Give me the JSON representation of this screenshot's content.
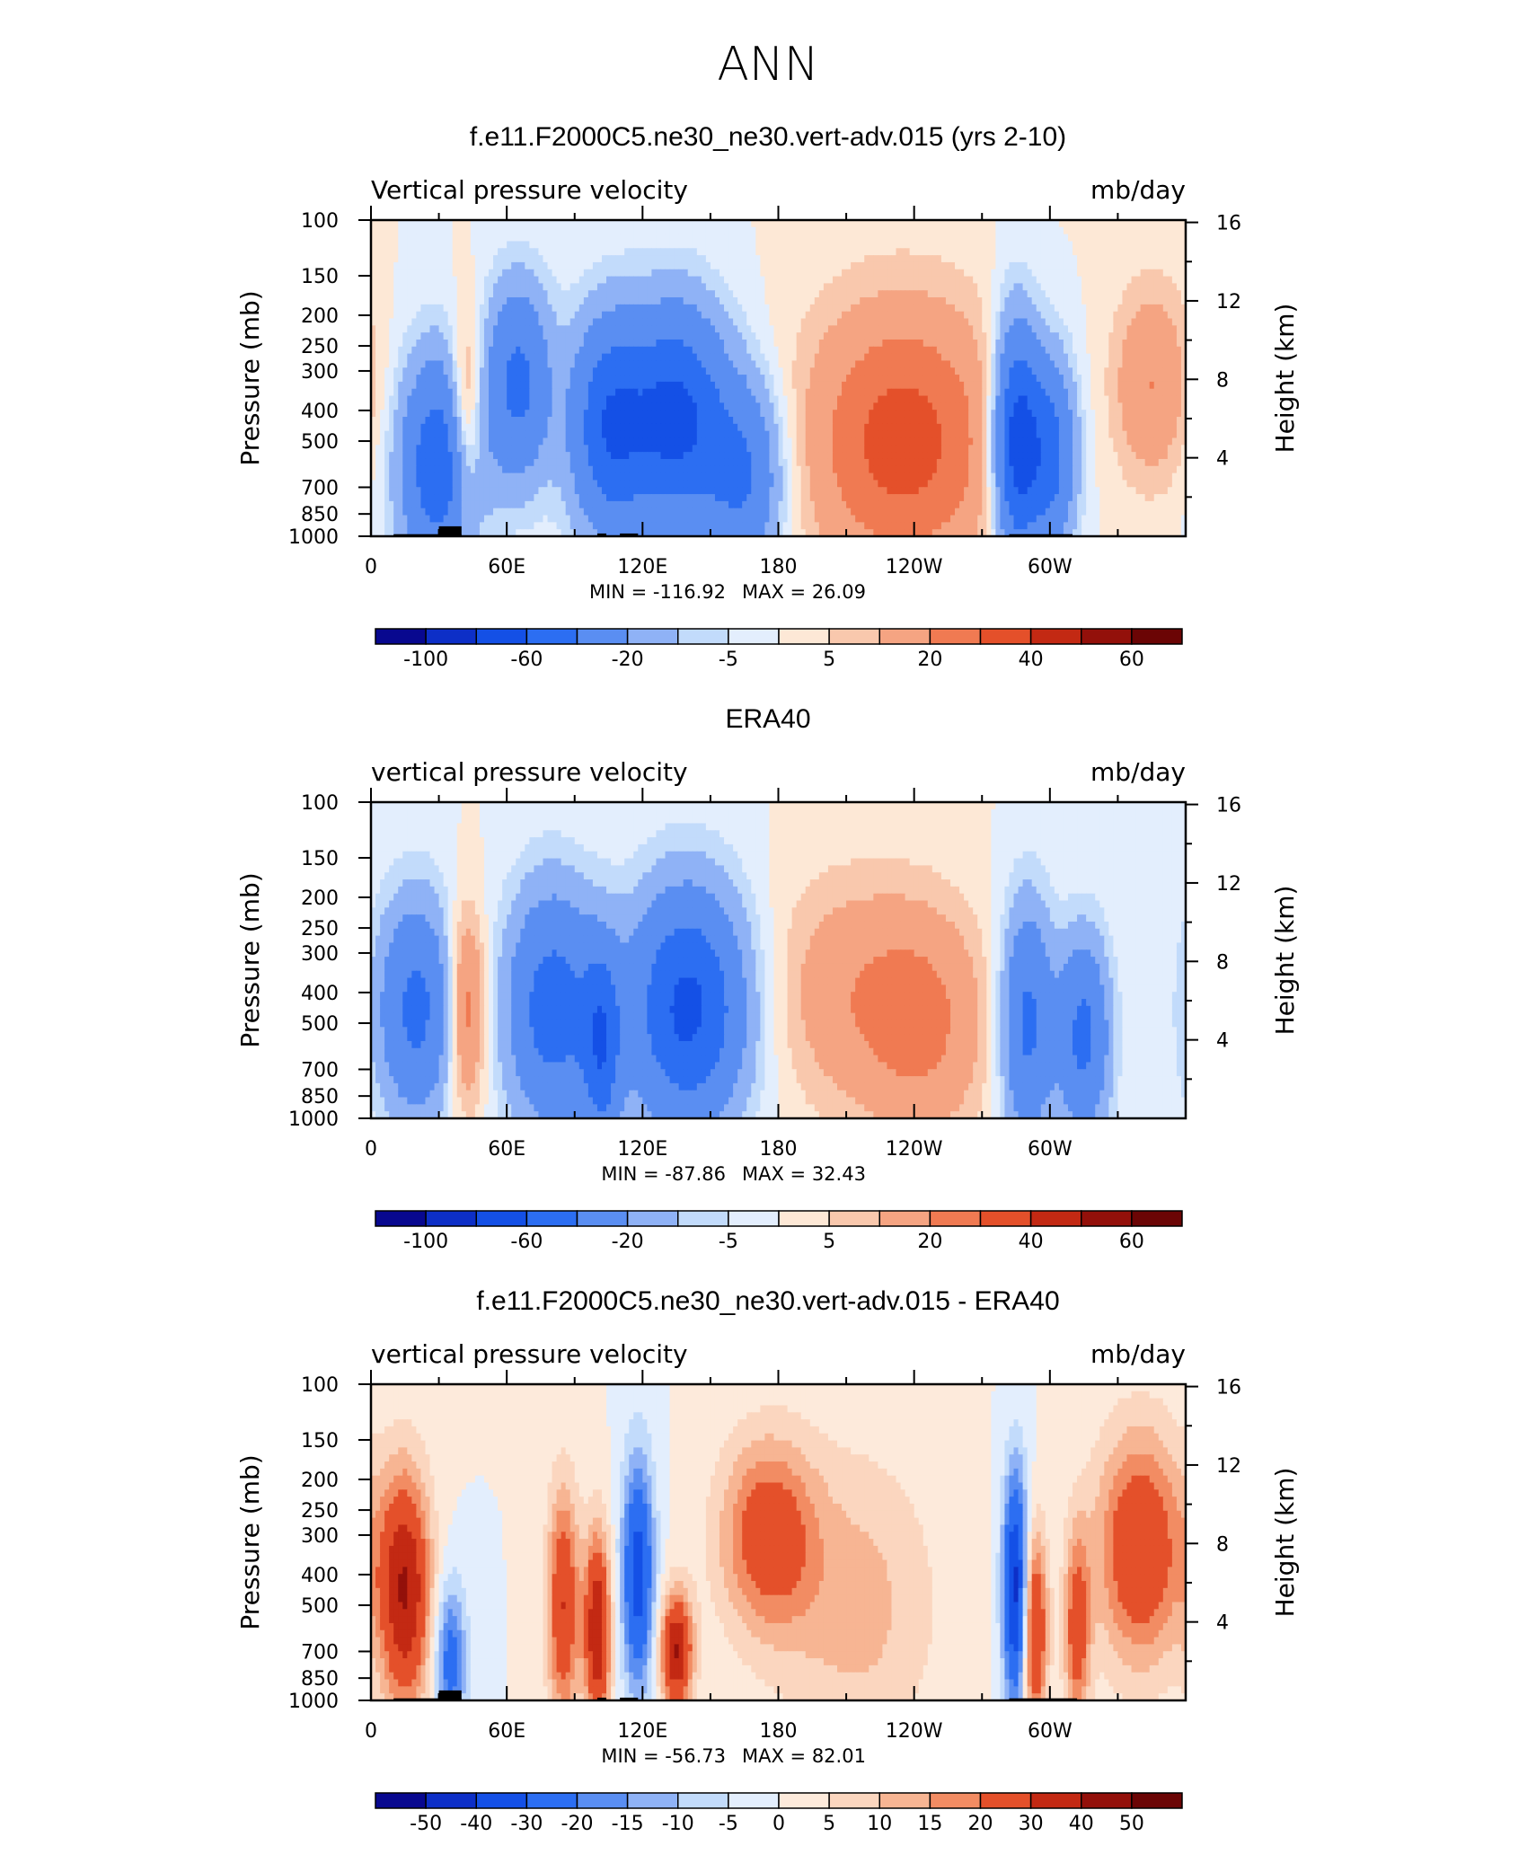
{
  "title": "ANN",
  "chart_data": [
    {
      "type": "heatmap",
      "title": "f.e11.F2000C5.ne30_ne30.vert-adv.015 (yrs 2-10)",
      "left_label": "Vertical pressure velocity",
      "units": "mb/day",
      "ylabel_left": "Pressure (mb)",
      "ylabel_right": "Height (km)",
      "x_ticks": [
        "0",
        "60E",
        "120E",
        "180",
        "120W",
        "60W"
      ],
      "pressure_ticks": [
        "100",
        "150",
        "200",
        "250",
        "300",
        "400",
        "500",
        "700",
        "850",
        "1000"
      ],
      "height_ticks": [
        "16",
        "12",
        "8",
        "4"
      ],
      "min_label": "MIN = -116.92",
      "max_label": "MAX = 26.09",
      "colorbar_labels": [
        "-100",
        "-60",
        "-20",
        "-5",
        "5",
        "20",
        "40",
        "60"
      ],
      "features": [
        {
          "lon": 30,
          "amp": -55,
          "p0": 600,
          "wl": 12,
          "wp": 0.55
        },
        {
          "lon": 42,
          "amp": 30,
          "p0": 420,
          "wl": 5,
          "wp": 0.5
        },
        {
          "lon": 65,
          "amp": -45,
          "p0": 330,
          "wl": 10,
          "wp": 0.5
        },
        {
          "lon": 105,
          "amp": -55,
          "p0": 450,
          "wl": 12,
          "wp": 0.55
        },
        {
          "lon": 135,
          "amp": -65,
          "p0": 420,
          "wl": 15,
          "wp": 0.55
        },
        {
          "lon": 165,
          "amp": -40,
          "p0": 650,
          "wl": 12,
          "wp": 0.5
        },
        {
          "lon": 235,
          "amp": 35,
          "p0": 500,
          "wl": 30,
          "wp": 0.7
        },
        {
          "lon": 285,
          "amp": -70,
          "p0": 500,
          "wl": 7,
          "wp": 0.6
        },
        {
          "lon": 300,
          "amp": -50,
          "p0": 550,
          "wl": 8,
          "wp": 0.5
        },
        {
          "lon": 345,
          "amp": 20,
          "p0": 330,
          "wl": 12,
          "wp": 0.5
        }
      ],
      "topography": [
        [
          10,
          40,
          1000
        ],
        [
          30,
          40,
          930
        ],
        [
          100,
          104,
          980
        ],
        [
          110,
          118,
          980
        ],
        [
          282,
          310,
          1000
        ]
      ]
    },
    {
      "type": "heatmap",
      "title": "ERA40",
      "left_label": "vertical pressure velocity",
      "units": "mb/day",
      "ylabel_left": "Pressure (mb)",
      "ylabel_right": "Height (km)",
      "x_ticks": [
        "0",
        "60E",
        "120E",
        "180",
        "120W",
        "60W"
      ],
      "pressure_ticks": [
        "100",
        "150",
        "200",
        "250",
        "300",
        "400",
        "500",
        "700",
        "850",
        "1000"
      ],
      "height_ticks": [
        "16",
        "12",
        "8",
        "4"
      ],
      "min_label": "MIN = -87.86",
      "max_label": "MAX = 32.43",
      "colorbar_labels": [
        "-100",
        "-60",
        "-20",
        "-5",
        "5",
        "20",
        "40",
        "60"
      ],
      "features": [
        {
          "lon": 20,
          "amp": -45,
          "p0": 450,
          "wl": 12,
          "wp": 0.55
        },
        {
          "lon": 42,
          "amp": 30,
          "p0": 450,
          "wl": 6,
          "wp": 0.5
        },
        {
          "lon": 80,
          "amp": -50,
          "p0": 450,
          "wl": 14,
          "wp": 0.6
        },
        {
          "lon": 102,
          "amp": -45,
          "p0": 600,
          "wl": 6,
          "wp": 0.5
        },
        {
          "lon": 140,
          "amp": -65,
          "p0": 450,
          "wl": 18,
          "wp": 0.6
        },
        {
          "lon": 210,
          "amp": 15,
          "p0": 400,
          "wl": 25,
          "wp": 0.6
        },
        {
          "lon": 245,
          "amp": 20,
          "p0": 500,
          "wl": 20,
          "wp": 0.6
        },
        {
          "lon": 290,
          "amp": -45,
          "p0": 500,
          "wl": 8,
          "wp": 0.6
        },
        {
          "lon": 315,
          "amp": -45,
          "p0": 550,
          "wl": 8,
          "wp": 0.5
        }
      ],
      "topography": []
    },
    {
      "type": "heatmap",
      "title": "f.e11.F2000C5.ne30_ne30.vert-adv.015 - ERA40",
      "left_label": "vertical pressure velocity",
      "units": "mb/day",
      "ylabel_left": "Pressure (mb)",
      "ylabel_right": "Height (km)",
      "x_ticks": [
        "0",
        "60E",
        "120E",
        "180",
        "120W",
        "60W"
      ],
      "pressure_ticks": [
        "100",
        "150",
        "200",
        "250",
        "300",
        "400",
        "500",
        "700",
        "850",
        "1000"
      ],
      "height_ticks": [
        "16",
        "12",
        "8",
        "4"
      ],
      "min_label": "MIN = -56.73",
      "max_label": "MAX = 82.01",
      "colorbar_labels": [
        "-50",
        "-40",
        "-30",
        "-20",
        "-15",
        "-10",
        "-5",
        "0",
        "5",
        "10",
        "15",
        "20",
        "30",
        "40",
        "50"
      ],
      "features": [
        {
          "lon": 15,
          "amp": 40,
          "p0": 450,
          "wl": 8,
          "wp": 0.6
        },
        {
          "lon": 35,
          "amp": -25,
          "p0": 750,
          "wl": 5,
          "wp": 0.4
        },
        {
          "lon": 85,
          "amp": 30,
          "p0": 500,
          "wl": 5,
          "wp": 0.6
        },
        {
          "lon": 100,
          "amp": 40,
          "p0": 600,
          "wl": 4,
          "wp": 0.5
        },
        {
          "lon": 118,
          "amp": -35,
          "p0": 400,
          "wl": 5,
          "wp": 0.6
        },
        {
          "lon": 135,
          "amp": 40,
          "p0": 700,
          "wl": 5,
          "wp": 0.3
        },
        {
          "lon": 175,
          "amp": 25,
          "p0": 300,
          "wl": 15,
          "wp": 0.5
        },
        {
          "lon": 215,
          "amp": 12,
          "p0": 500,
          "wl": 25,
          "wp": 0.8
        },
        {
          "lon": 285,
          "amp": -45,
          "p0": 450,
          "wl": 4,
          "wp": 0.6
        },
        {
          "lon": 293,
          "amp": 35,
          "p0": 600,
          "wl": 4,
          "wp": 0.5
        },
        {
          "lon": 312,
          "amp": 25,
          "p0": 600,
          "wl": 4,
          "wp": 0.5
        },
        {
          "lon": 340,
          "amp": 30,
          "p0": 330,
          "wl": 14,
          "wp": 0.6
        }
      ],
      "topography": [
        [
          10,
          40,
          1000
        ],
        [
          30,
          40,
          930
        ],
        [
          100,
          104,
          980
        ],
        [
          110,
          118,
          980
        ],
        [
          282,
          312,
          1000
        ]
      ]
    }
  ],
  "colorbar_colors": [
    "#08088f",
    "#0d2fc7",
    "#1450e6",
    "#2c6ef2",
    "#5a8ef2",
    "#8fb2f6",
    "#c2dbfb",
    "#e3eefd",
    "#fde8d6",
    "#f9c8ad",
    "#f5a482",
    "#f07a52",
    "#e4502a",
    "#c32913",
    "#93100a",
    "#6b0505"
  ],
  "colorbar_colors_diff": [
    "#08088f",
    "#0d2fc7",
    "#1450e6",
    "#2c6ef2",
    "#5a8ef2",
    "#8fb2f6",
    "#c2dbfb",
    "#e3eefd",
    "#fdeadb",
    "#fbd6bf",
    "#f7b593",
    "#f28c63",
    "#e4502a",
    "#c32913",
    "#93100a",
    "#6b0505"
  ]
}
